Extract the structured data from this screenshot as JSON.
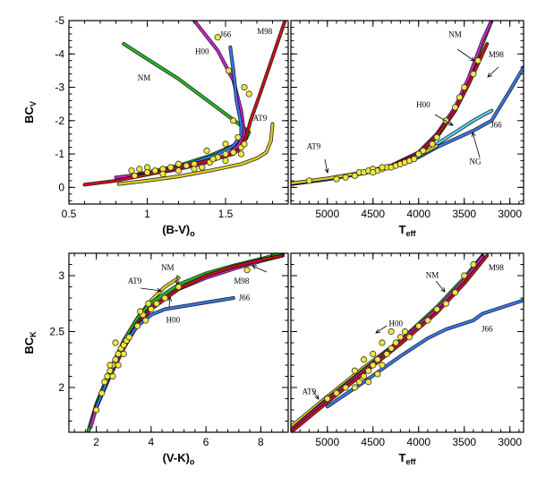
{
  "chart_data": [
    {
      "type": "line",
      "panel": "top-left",
      "xlabel": "(B-V)",
      "xlabel_sub": "o",
      "ylabel": "BC",
      "ylabel_sub": "V",
      "xlim": [
        0.5,
        1.9
      ],
      "ylim": [
        0.5,
        -5
      ],
      "xticks": [
        0.5,
        1,
        1.5
      ],
      "yticks": [
        0,
        -1,
        -2,
        -3,
        -4,
        -5
      ],
      "series": [
        {
          "name": "NM",
          "color": "#22bb22",
          "x": [
            0.85,
            1.0,
            1.2,
            1.4,
            1.6,
            1.65,
            1.63,
            1.55,
            1.4,
            1.2,
            1.0,
            0.85
          ],
          "y": [
            -4.3,
            -3.85,
            -3.25,
            -2.55,
            -1.85,
            -1.65,
            -1.45,
            -1.25,
            -0.95,
            -0.65,
            -0.45,
            -0.3
          ]
        },
        {
          "name": "H00",
          "color": "#cc22cc",
          "x": [
            1.3,
            1.45,
            1.55,
            1.6,
            1.62,
            1.58,
            1.5,
            1.35,
            1.15,
            0.95,
            0.8
          ],
          "y": [
            -5.0,
            -4.1,
            -3.2,
            -2.3,
            -1.6,
            -1.25,
            -0.95,
            -0.7,
            -0.5,
            -0.38,
            -0.3
          ]
        },
        {
          "name": "J66",
          "color": "#3377ee",
          "x": [
            1.53,
            1.55,
            1.57,
            1.6,
            1.6,
            1.55,
            1.45,
            1.3,
            1.1,
            0.9
          ],
          "y": [
            -4.2,
            -3.5,
            -2.6,
            -1.9,
            -1.55,
            -1.25,
            -1.0,
            -0.75,
            -0.5,
            -0.3
          ]
        },
        {
          "name": "M98",
          "color": "#cc1111",
          "x": [
            0.6,
            0.8,
            1.0,
            1.2,
            1.4,
            1.55,
            1.6,
            1.63,
            1.66,
            1.72,
            1.8,
            1.88
          ],
          "y": [
            -0.08,
            -0.2,
            -0.38,
            -0.58,
            -0.82,
            -1.0,
            -1.2,
            -1.5,
            -2.0,
            -2.8,
            -3.9,
            -5.0
          ]
        },
        {
          "name": "AT9",
          "color": "#ddcc22",
          "x": [
            0.82,
            1.0,
            1.2,
            1.4,
            1.6,
            1.7,
            1.76,
            1.79,
            1.8
          ],
          "y": [
            -0.1,
            -0.2,
            -0.33,
            -0.5,
            -0.7,
            -0.87,
            -1.05,
            -1.4,
            -1.9
          ]
        }
      ],
      "points": [
        [
          0.9,
          -0.5
        ],
        [
          0.95,
          -0.55
        ],
        [
          1.0,
          -0.6
        ],
        [
          1.05,
          -0.5
        ],
        [
          1.1,
          -0.55
        ],
        [
          1.15,
          -0.6
        ],
        [
          1.2,
          -0.7
        ],
        [
          1.25,
          -0.65
        ],
        [
          1.3,
          -0.7
        ],
        [
          1.35,
          -0.6
        ],
        [
          1.4,
          -0.75
        ],
        [
          1.45,
          -0.9
        ],
        [
          1.5,
          -1.0
        ],
        [
          1.55,
          -1.05
        ],
        [
          1.6,
          -1.2
        ],
        [
          1.42,
          -0.85
        ],
        [
          1.3,
          -0.55
        ],
        [
          1.2,
          -0.5
        ],
        [
          1.1,
          -0.4
        ],
        [
          1.0,
          -0.45
        ],
        [
          0.92,
          -0.35
        ],
        [
          1.45,
          -4.5
        ],
        [
          1.52,
          -3.5
        ],
        [
          1.62,
          -3.0
        ],
        [
          1.65,
          -2.8
        ],
        [
          1.55,
          -2.0
        ],
        [
          1.5,
          -1.3
        ],
        [
          1.38,
          -1.1
        ],
        [
          1.58,
          -1.5
        ],
        [
          1.62,
          -1.3
        ],
        [
          1.35,
          -0.6
        ],
        [
          1.5,
          -0.8
        ],
        [
          1.6,
          -1.0
        ]
      ],
      "labels": [
        {
          "text": "NM",
          "x": 0.98,
          "y": -3.2
        },
        {
          "text": "H00",
          "x": 1.35,
          "y": -4.0
        },
        {
          "text": "J66",
          "x": 1.5,
          "y": -4.5
        },
        {
          "text": "M98",
          "x": 1.75,
          "y": -4.6
        },
        {
          "text": "AT9",
          "x": 1.72,
          "y": -2.0
        }
      ]
    },
    {
      "type": "line",
      "panel": "top-right",
      "xlabel": "T",
      "xlabel_sub": "eff",
      "ylabel": "",
      "ylabel_sub": "",
      "xlim": [
        5400,
        2850
      ],
      "ylim": [
        0.5,
        -5
      ],
      "xticks": [
        5000,
        4500,
        4000,
        3500,
        3000
      ],
      "yticks": [
        0,
        -1,
        -2,
        -3,
        -4,
        -5
      ],
      "series": [
        {
          "name": "NM",
          "color": "#22bb22",
          "x": [
            5400,
            5000,
            4600,
            4300,
            4000,
            3800,
            3600,
            3450,
            3300,
            3200
          ],
          "y": [
            -0.1,
            -0.25,
            -0.45,
            -0.65,
            -1.0,
            -1.5,
            -2.3,
            -3.2,
            -4.3,
            -5.0
          ]
        },
        {
          "name": "H00",
          "color": "#cc22cc",
          "x": [
            5400,
            5000,
            4600,
            4300,
            4000,
            3800,
            3600,
            3450,
            3300,
            3200
          ],
          "y": [
            -0.1,
            -0.25,
            -0.45,
            -0.65,
            -1.05,
            -1.6,
            -2.4,
            -3.3,
            -4.4,
            -5.0
          ]
        },
        {
          "name": "M98",
          "color": "#cc1111",
          "x": [
            5400,
            5000,
            4600,
            4300,
            4000,
            3800,
            3600,
            3450,
            3300,
            3250
          ],
          "y": [
            -0.1,
            -0.25,
            -0.45,
            -0.65,
            -1.0,
            -1.55,
            -2.3,
            -3.1,
            -4.0,
            -4.3
          ]
        },
        {
          "name": "J66",
          "color": "#3377ee",
          "x": [
            5400,
            5000,
            4600,
            4300,
            4000,
            3800,
            3600,
            3400,
            3200,
            3000,
            2850
          ],
          "y": [
            -0.1,
            -0.24,
            -0.42,
            -0.6,
            -0.9,
            -1.2,
            -1.45,
            -1.7,
            -2.0,
            -2.9,
            -3.6
          ]
        },
        {
          "name": "NG",
          "color": "#55ccee",
          "x": [
            3800,
            3600,
            3400,
            3200
          ],
          "y": [
            -1.3,
            -1.65,
            -2.0,
            -2.3
          ]
        },
        {
          "name": "AT9",
          "color": "#ddcc22",
          "x": [
            5400,
            5000,
            4600,
            4300,
            4000,
            3800
          ],
          "y": [
            -0.12,
            -0.27,
            -0.45,
            -0.62,
            -0.95,
            -1.25
          ]
        }
      ],
      "points": [
        [
          4900,
          -0.25
        ],
        [
          4800,
          -0.3
        ],
        [
          4700,
          -0.35
        ],
        [
          4650,
          -0.45
        ],
        [
          4600,
          -0.45
        ],
        [
          4550,
          -0.5
        ],
        [
          4500,
          -0.55
        ],
        [
          4450,
          -0.5
        ],
        [
          4400,
          -0.55
        ],
        [
          4350,
          -0.6
        ],
        [
          4300,
          -0.6
        ],
        [
          4250,
          -0.65
        ],
        [
          4200,
          -0.7
        ],
        [
          4150,
          -0.75
        ],
        [
          4100,
          -0.8
        ],
        [
          4050,
          -0.85
        ],
        [
          4000,
          -1.0
        ],
        [
          3950,
          -1.1
        ],
        [
          3850,
          -1.3
        ],
        [
          3800,
          -1.5
        ],
        [
          3700,
          -2.0
        ],
        [
          3600,
          -2.4
        ],
        [
          3550,
          -2.7
        ],
        [
          3500,
          -3.0
        ],
        [
          3400,
          -3.4
        ],
        [
          3350,
          -3.8
        ],
        [
          4500,
          -0.45
        ],
        [
          4400,
          -0.6
        ],
        [
          5200,
          -0.2
        ]
      ],
      "labels": [
        {
          "text": "NM",
          "x": 3600,
          "y": -4.5
        },
        {
          "text": "M98",
          "x": 3150,
          "y": -3.9
        },
        {
          "text": "H00",
          "x": 3950,
          "y": -2.4
        },
        {
          "text": "J66",
          "x": 3150,
          "y": -1.8
        },
        {
          "text": "NG",
          "x": 3380,
          "y": -0.7
        },
        {
          "text": "AT9",
          "x": 5150,
          "y": -1.15
        }
      ]
    },
    {
      "type": "line",
      "panel": "bottom-left",
      "xlabel": "(V-K)",
      "xlabel_sub": "o",
      "ylabel": "BC",
      "ylabel_sub": "K",
      "xlim": [
        1,
        9
      ],
      "ylim": [
        1.6,
        3.2
      ],
      "xticks": [
        2,
        4,
        6,
        8
      ],
      "yticks": [
        2,
        2.5,
        3
      ],
      "series": [
        {
          "name": "AT9",
          "color": "#ddcc22",
          "x": [
            1.7,
            2.0,
            2.5,
            3.0,
            3.5,
            4.0,
            4.5,
            5.0
          ],
          "y": [
            1.6,
            1.85,
            2.15,
            2.42,
            2.62,
            2.78,
            2.9,
            2.98
          ]
        },
        {
          "name": "NM",
          "color": "#22bb22",
          "x": [
            1.7,
            2.0,
            2.5,
            3.0,
            3.5,
            4.0,
            5.0,
            6.0,
            7.0,
            8.0,
            8.8
          ],
          "y": [
            1.6,
            1.85,
            2.15,
            2.42,
            2.62,
            2.76,
            2.92,
            3.02,
            3.09,
            3.15,
            3.2
          ]
        },
        {
          "name": "H00",
          "color": "#cc22cc",
          "x": [
            1.8,
            2.0,
            2.5,
            3.0,
            3.5,
            4.0,
            5.0,
            6.0,
            7.0,
            8.0,
            8.8
          ],
          "y": [
            1.65,
            1.82,
            2.12,
            2.38,
            2.58,
            2.72,
            2.88,
            2.98,
            3.06,
            3.13,
            3.18
          ]
        },
        {
          "name": "M98",
          "color": "#cc1111",
          "x": [
            2.0,
            2.5,
            3.0,
            3.5,
            4.0,
            5.0,
            6.0,
            7.0,
            8.0,
            8.8
          ],
          "y": [
            1.82,
            2.1,
            2.35,
            2.56,
            2.7,
            2.88,
            3.0,
            3.08,
            3.14,
            3.18
          ]
        },
        {
          "name": "J66",
          "color": "#3377ee",
          "x": [
            2.0,
            2.5,
            3.0,
            3.5,
            4.0,
            4.5,
            5.0,
            5.5,
            6.0,
            6.5,
            7.0
          ],
          "y": [
            1.82,
            2.12,
            2.38,
            2.55,
            2.65,
            2.7,
            2.72,
            2.74,
            2.76,
            2.78,
            2.8
          ]
        }
      ],
      "points": [
        [
          2.0,
          1.8
        ],
        [
          2.2,
          1.95
        ],
        [
          2.3,
          2.05
        ],
        [
          2.4,
          2.1
        ],
        [
          2.5,
          2.15
        ],
        [
          2.6,
          2.2
        ],
        [
          2.7,
          2.25
        ],
        [
          2.8,
          2.3
        ],
        [
          2.9,
          2.35
        ],
        [
          3.0,
          2.38
        ],
        [
          3.1,
          2.42
        ],
        [
          3.2,
          2.45
        ],
        [
          2.5,
          2.2
        ],
        [
          2.6,
          2.1
        ],
        [
          2.8,
          2.2
        ],
        [
          2.7,
          2.4
        ],
        [
          3.0,
          2.3
        ],
        [
          3.5,
          2.55
        ],
        [
          3.7,
          2.65
        ],
        [
          4.0,
          2.7
        ],
        [
          3.8,
          2.6
        ],
        [
          3.6,
          2.68
        ],
        [
          4.2,
          2.75
        ],
        [
          4.5,
          2.8
        ],
        [
          5.0,
          2.9
        ],
        [
          7.5,
          3.05
        ],
        [
          3.9,
          2.75
        ]
      ],
      "labels": [
        {
          "text": "AT9",
          "x": 3.4,
          "y": 2.93
        },
        {
          "text": "NM",
          "x": 4.6,
          "y": 3.05
        },
        {
          "text": "H00",
          "x": 4.8,
          "y": 2.58
        },
        {
          "text": "M98",
          "x": 7.3,
          "y": 2.93
        },
        {
          "text": "J66",
          "x": 7.4,
          "y": 2.78
        }
      ]
    },
    {
      "type": "line",
      "panel": "bottom-right",
      "xlabel": "T",
      "xlabel_sub": "eff",
      "ylabel": "",
      "ylabel_sub": "",
      "xlim": [
        5400,
        2850
      ],
      "ylim": [
        1.6,
        3.2
      ],
      "xticks": [
        5000,
        4500,
        4000,
        3500,
        3000
      ],
      "yticks": [
        2,
        2.5,
        3
      ],
      "series": [
        {
          "name": "AT9",
          "color": "#ddcc22",
          "x": [
            5400,
            5000,
            4600,
            4200,
            3800
          ],
          "y": [
            1.65,
            1.92,
            2.18,
            2.42,
            2.7
          ]
        },
        {
          "name": "NM",
          "color": "#22bb22",
          "x": [
            5400,
            5000,
            4600,
            4200,
            3800,
            3500,
            3300
          ],
          "y": [
            1.62,
            1.9,
            2.16,
            2.42,
            2.72,
            2.98,
            3.18
          ]
        },
        {
          "name": "H00",
          "color": "#cc22cc",
          "x": [
            5400,
            5000,
            4600,
            4200,
            3800,
            3500,
            3300
          ],
          "y": [
            1.62,
            1.89,
            2.15,
            2.41,
            2.7,
            2.96,
            3.17
          ]
        },
        {
          "name": "M98",
          "color": "#cc1111",
          "x": [
            5400,
            5000,
            4600,
            4200,
            3800,
            3500,
            3250
          ],
          "y": [
            1.6,
            1.87,
            2.13,
            2.39,
            2.67,
            2.93,
            3.18
          ]
        },
        {
          "name": "J66",
          "color": "#3377ee",
          "x": [
            5000,
            4600,
            4200,
            3900,
            3700,
            3550,
            3400,
            3300,
            3150,
            3000,
            2850
          ],
          "y": [
            1.83,
            2.05,
            2.28,
            2.44,
            2.52,
            2.56,
            2.6,
            2.66,
            2.7,
            2.74,
            2.78
          ]
        }
      ],
      "points": [
        [
          4700,
          2.0
        ],
        [
          4650,
          2.05
        ],
        [
          4600,
          2.1
        ],
        [
          4550,
          2.15
        ],
        [
          4500,
          2.2
        ],
        [
          4450,
          2.25
        ],
        [
          4400,
          2.2
        ],
        [
          4350,
          2.3
        ],
        [
          4300,
          2.35
        ],
        [
          4250,
          2.4
        ],
        [
          4200,
          2.45
        ],
        [
          4150,
          2.5
        ],
        [
          4100,
          2.45
        ],
        [
          4600,
          2.25
        ],
        [
          4500,
          2.3
        ],
        [
          4400,
          2.4
        ],
        [
          4800,
          2.0
        ],
        [
          4700,
          2.15
        ],
        [
          4900,
          1.95
        ],
        [
          5000,
          1.9
        ],
        [
          4000,
          2.55
        ],
        [
          3900,
          2.6
        ],
        [
          3800,
          2.7
        ],
        [
          3700,
          2.75
        ],
        [
          3600,
          2.85
        ],
        [
          3500,
          3.0
        ],
        [
          3400,
          3.1
        ],
        [
          4300,
          2.5
        ],
        [
          4450,
          2.12
        ],
        [
          4550,
          2.05
        ]
      ],
      "labels": [
        {
          "text": "NM",
          "x": 3850,
          "y": 2.98
        },
        {
          "text": "M98",
          "x": 3150,
          "y": 3.05
        },
        {
          "text": "H00",
          "x": 4250,
          "y": 2.55
        },
        {
          "text": "J66",
          "x": 3250,
          "y": 2.5
        },
        {
          "text": "AT9",
          "x": 5200,
          "y": 1.94
        }
      ]
    }
  ]
}
